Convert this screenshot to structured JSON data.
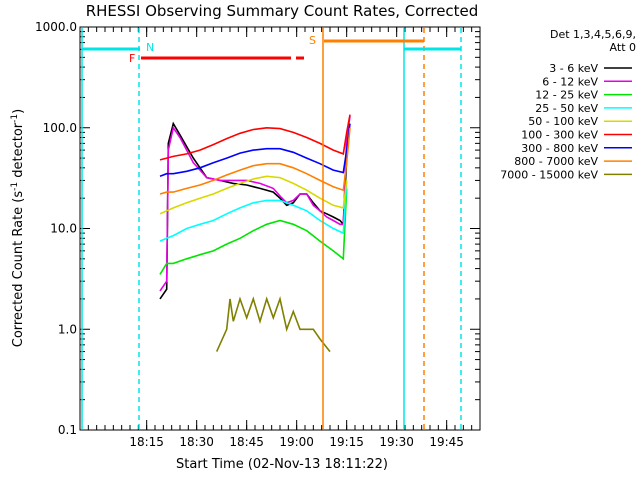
{
  "chart_data": {
    "type": "line",
    "title": "RHESSI Observing Summary Count Rates, Corrected",
    "xlabel": "Start Time (02-Nov-13 18:11:22)",
    "ylabel": "Corrected Count Rate (s",
    "ylabel_sup": "-1",
    "ylabel_tail": " detector",
    "ylabel_sup2": "-1",
    "ylabel_end": ")",
    "yscale": "log",
    "ylim": [
      0.1,
      1000
    ],
    "xlim_minutes": [
      -20,
      100
    ],
    "x_ticks": [
      {
        "label": "18:15",
        "min": 0
      },
      {
        "label": "18:30",
        "min": 15
      },
      {
        "label": "18:45",
        "min": 30
      },
      {
        "label": "19:00",
        "min": 45
      },
      {
        "label": "19:15",
        "min": 60
      },
      {
        "label": "19:30",
        "min": 75
      },
      {
        "label": "19:45",
        "min": 90
      }
    ],
    "y_ticks": [
      {
        "label": "0.1",
        "v": 0.1
      },
      {
        "label": "1.0",
        "v": 1
      },
      {
        "label": "10.0",
        "v": 10
      },
      {
        "label": "100.0",
        "v": 100
      },
      {
        "label": "1000.0",
        "v": 1000
      }
    ],
    "legend": {
      "header1": "Det 1,3,4,5,6,9,",
      "header2": "Att 0",
      "entries": [
        {
          "label": "3 - 6 keV",
          "color": "#000000"
        },
        {
          "label": "6 - 12 keV",
          "color": "#e600e6"
        },
        {
          "label": "12 - 25 keV",
          "color": "#00e600"
        },
        {
          "label": "25 - 50 keV",
          "color": "#00ffff"
        },
        {
          "label": "50 - 100 keV",
          "color": "#d8d800"
        },
        {
          "label": "100 - 300 keV",
          "color": "#ff0000"
        },
        {
          "label": "300 - 800 keV",
          "color": "#0000ff"
        },
        {
          "label": "800 - 7000 keV",
          "color": "#ff8000"
        },
        {
          "label": "7000 - 15000 keV",
          "color": "#808000"
        }
      ]
    },
    "flags": [
      {
        "label": "N",
        "color": "#00e6e6"
      },
      {
        "label": "F",
        "color": "#ff0000"
      },
      {
        "label": "S",
        "color": "#ff8000"
      }
    ],
    "series": [
      {
        "name": "3 - 6 keV",
        "color": "#000000",
        "points": [
          [
            4,
            2
          ],
          [
            6,
            2.5
          ],
          [
            6.5,
            70
          ],
          [
            8,
            110
          ],
          [
            10,
            85
          ],
          [
            12,
            65
          ],
          [
            14,
            50
          ],
          [
            16,
            40
          ],
          [
            18,
            32
          ],
          [
            22,
            30
          ],
          [
            26,
            28
          ],
          [
            30,
            27
          ],
          [
            34,
            25
          ],
          [
            38,
            23
          ],
          [
            40,
            20
          ],
          [
            42,
            17
          ],
          [
            44,
            18
          ],
          [
            46,
            22
          ],
          [
            48,
            22
          ],
          [
            50,
            18
          ],
          [
            52,
            15
          ],
          [
            54,
            14
          ],
          [
            56,
            13
          ],
          [
            58,
            12
          ],
          [
            59,
            11
          ],
          [
            60,
            50
          ]
        ]
      },
      {
        "name": "6 - 12 keV",
        "color": "#e600e6",
        "points": [
          [
            4,
            2.4
          ],
          [
            6,
            3
          ],
          [
            6.5,
            60
          ],
          [
            8,
            100
          ],
          [
            10,
            80
          ],
          [
            12,
            60
          ],
          [
            14,
            45
          ],
          [
            16,
            38
          ],
          [
            18,
            32
          ],
          [
            22,
            30
          ],
          [
            26,
            30
          ],
          [
            30,
            30
          ],
          [
            34,
            28
          ],
          [
            38,
            25
          ],
          [
            40,
            21
          ],
          [
            42,
            18
          ],
          [
            44,
            19
          ],
          [
            46,
            22
          ],
          [
            48,
            22
          ],
          [
            50,
            17
          ],
          [
            52,
            15
          ],
          [
            54,
            13
          ],
          [
            56,
            12
          ],
          [
            58,
            11
          ],
          [
            59,
            11
          ],
          [
            60,
            80
          ],
          [
            61,
            130
          ]
        ]
      },
      {
        "name": "12 - 25 keV",
        "color": "#00e600",
        "points": [
          [
            4,
            3.5
          ],
          [
            6,
            4.5
          ],
          [
            8,
            4.5
          ],
          [
            12,
            5
          ],
          [
            16,
            5.5
          ],
          [
            20,
            6
          ],
          [
            24,
            7
          ],
          [
            28,
            8
          ],
          [
            32,
            9.5
          ],
          [
            36,
            11
          ],
          [
            40,
            12
          ],
          [
            44,
            11
          ],
          [
            48,
            9.5
          ],
          [
            52,
            7.5
          ],
          [
            56,
            6
          ],
          [
            59,
            5
          ],
          [
            60,
            25
          ]
        ]
      },
      {
        "name": "25 - 50 keV",
        "color": "#00ffff",
        "points": [
          [
            4,
            7.5
          ],
          [
            6,
            8
          ],
          [
            8,
            8.5
          ],
          [
            12,
            10
          ],
          [
            16,
            11
          ],
          [
            20,
            12
          ],
          [
            24,
            14
          ],
          [
            28,
            16
          ],
          [
            32,
            18
          ],
          [
            36,
            19
          ],
          [
            40,
            19
          ],
          [
            44,
            17
          ],
          [
            48,
            15
          ],
          [
            52,
            12
          ],
          [
            56,
            10
          ],
          [
            59,
            9
          ],
          [
            60,
            30
          ]
        ]
      },
      {
        "name": "50 - 100 keV",
        "color": "#d8d800",
        "points": [
          [
            4,
            14
          ],
          [
            6,
            15
          ],
          [
            8,
            16
          ],
          [
            12,
            18
          ],
          [
            16,
            20
          ],
          [
            20,
            22
          ],
          [
            24,
            25
          ],
          [
            28,
            28
          ],
          [
            32,
            31
          ],
          [
            36,
            33
          ],
          [
            40,
            32
          ],
          [
            44,
            28
          ],
          [
            48,
            24
          ],
          [
            52,
            20
          ],
          [
            56,
            17
          ],
          [
            59,
            16
          ],
          [
            60,
            30
          ]
        ]
      },
      {
        "name": "100 - 300 keV",
        "color": "#ff0000",
        "points": [
          [
            4,
            48
          ],
          [
            6,
            50
          ],
          [
            8,
            52
          ],
          [
            12,
            55
          ],
          [
            16,
            60
          ],
          [
            20,
            68
          ],
          [
            24,
            78
          ],
          [
            28,
            88
          ],
          [
            32,
            96
          ],
          [
            36,
            100
          ],
          [
            40,
            98
          ],
          [
            44,
            90
          ],
          [
            48,
            80
          ],
          [
            52,
            70
          ],
          [
            56,
            60
          ],
          [
            59,
            55
          ],
          [
            60,
            90
          ],
          [
            61,
            135
          ]
        ]
      },
      {
        "name": "300 - 800 keV",
        "color": "#0000ff",
        "points": [
          [
            4,
            33
          ],
          [
            6,
            35
          ],
          [
            8,
            35
          ],
          [
            12,
            37
          ],
          [
            16,
            40
          ],
          [
            20,
            45
          ],
          [
            24,
            50
          ],
          [
            28,
            56
          ],
          [
            32,
            60
          ],
          [
            36,
            62
          ],
          [
            40,
            62
          ],
          [
            44,
            57
          ],
          [
            48,
            50
          ],
          [
            52,
            44
          ],
          [
            56,
            38
          ],
          [
            59,
            36
          ],
          [
            60,
            60
          ],
          [
            61,
            110
          ]
        ]
      },
      {
        "name": "800 - 7000 keV",
        "color": "#ff8000",
        "points": [
          [
            4,
            22
          ],
          [
            6,
            23
          ],
          [
            8,
            23
          ],
          [
            12,
            25
          ],
          [
            16,
            27
          ],
          [
            20,
            30
          ],
          [
            24,
            34
          ],
          [
            28,
            38
          ],
          [
            32,
            42
          ],
          [
            36,
            44
          ],
          [
            40,
            44
          ],
          [
            44,
            40
          ],
          [
            48,
            35
          ],
          [
            52,
            30
          ],
          [
            56,
            26
          ],
          [
            59,
            24
          ],
          [
            60,
            45
          ],
          [
            61,
            100
          ]
        ]
      },
      {
        "name": "7000 - 15000 keV",
        "color": "#808000",
        "points": [
          [
            21,
            0.6
          ],
          [
            24,
            1
          ],
          [
            25,
            2
          ],
          [
            26,
            1.2
          ],
          [
            28,
            2
          ],
          [
            30,
            1.3
          ],
          [
            32,
            2
          ],
          [
            34,
            1.2
          ],
          [
            36,
            2
          ],
          [
            38,
            1.3
          ],
          [
            40,
            2
          ],
          [
            42,
            1
          ],
          [
            44,
            1.5
          ],
          [
            46,
            1
          ],
          [
            50,
            1
          ],
          [
            52,
            0.8
          ],
          [
            55,
            0.6
          ]
        ]
      }
    ]
  }
}
